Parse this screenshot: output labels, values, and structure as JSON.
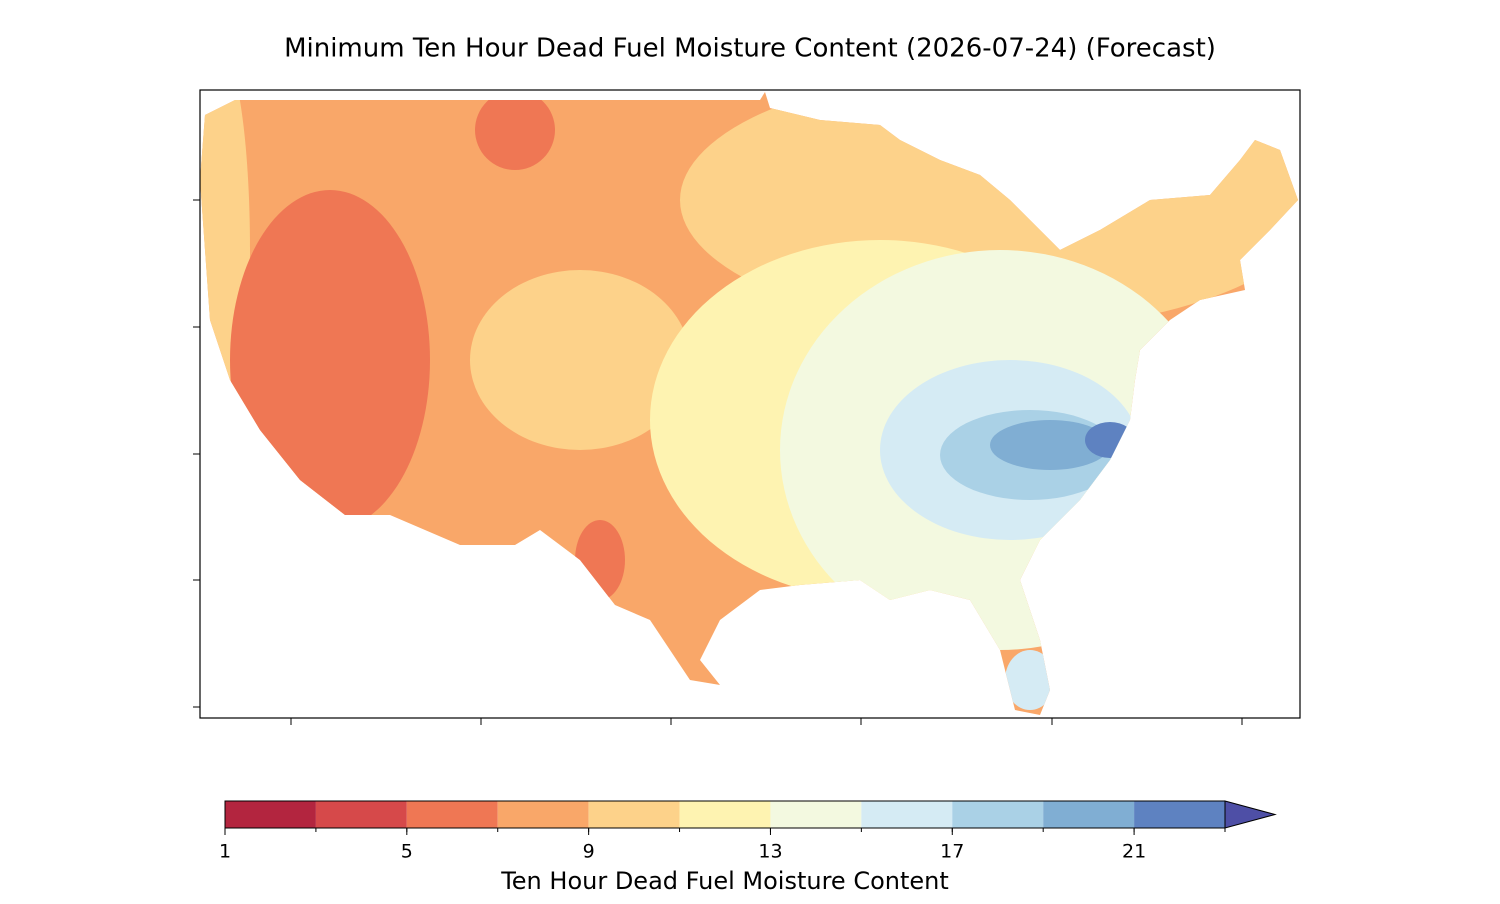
{
  "title": "Minimum Ten Hour Dead Fuel Moisture Content (2026-07-24) (Forecast)",
  "colorbar": {
    "label": "Ten Hour Dead Fuel Moisture Content",
    "bounds": [
      1,
      3,
      5,
      7,
      9,
      11,
      13,
      15,
      17,
      19,
      21,
      23
    ],
    "colors": [
      "#b3253f",
      "#d6494a",
      "#ef7754",
      "#f9a769",
      "#fdd28a",
      "#fef3b1",
      "#f3f9e0",
      "#d5ebf4",
      "#aad1e6",
      "#80aed3",
      "#5e82c1"
    ],
    "extend": "max",
    "extend_color": "#4e4fa6",
    "ticks": [
      1,
      5,
      9,
      13,
      17,
      21
    ]
  }
}
